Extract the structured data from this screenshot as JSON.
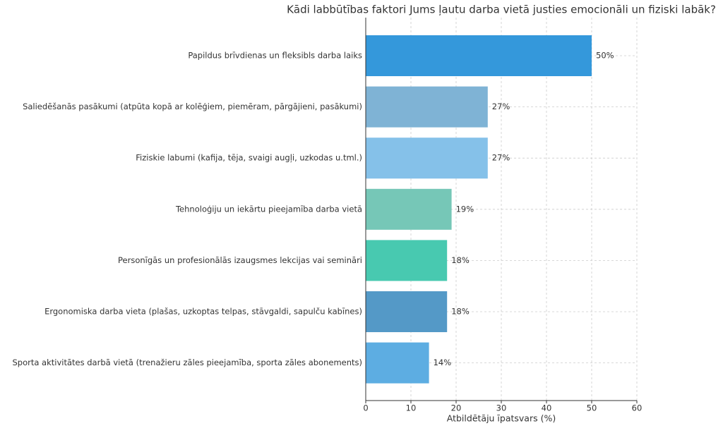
{
  "chart_data": {
    "type": "barh",
    "title": "Kādi labbūtības faktori Jums ļautu darba vietā justies emocionāli un fiziski labāk?",
    "xlabel": "Atbildētāju īpatsvars (%)",
    "categories": [
      "Papildus brīvdienas un fleksibls darba laiks",
      "Saliedēšanās pasākumi (atpūta kopā ar kolēģiem, piemēram, pārgājieni, pasākumi)",
      "Fiziskie labumi (kafija, tēja, svaigi augļi, uzkodas u.tml.)",
      "Tehnoloģiju un iekārtu pieejamība darba vietā",
      "Personīgās un profesionālās izaugsmes lekcijas vai semināri",
      "Ergonomiska darba vieta (plašas, uzkoptas telpas, stāvgaldi, sapulču kabīnes)",
      "Sporta aktivitātes darbā vietā (trenažieru zāles pieejamība, sporta zāles abonements)"
    ],
    "values": [
      50,
      27,
      27,
      19,
      18,
      18,
      14
    ],
    "value_labels": [
      "50%",
      "27%",
      "27%",
      "19%",
      "18%",
      "18%",
      "14%"
    ],
    "colors": [
      "#3498db",
      "#7fb3d5",
      "#85c1e9",
      "#76c7b7",
      "#48c9b0",
      "#5499c7",
      "#5dade2"
    ],
    "xlim": [
      0,
      60
    ],
    "xticks": [
      0,
      10,
      20,
      30,
      40,
      50,
      60
    ],
    "grid": true
  }
}
